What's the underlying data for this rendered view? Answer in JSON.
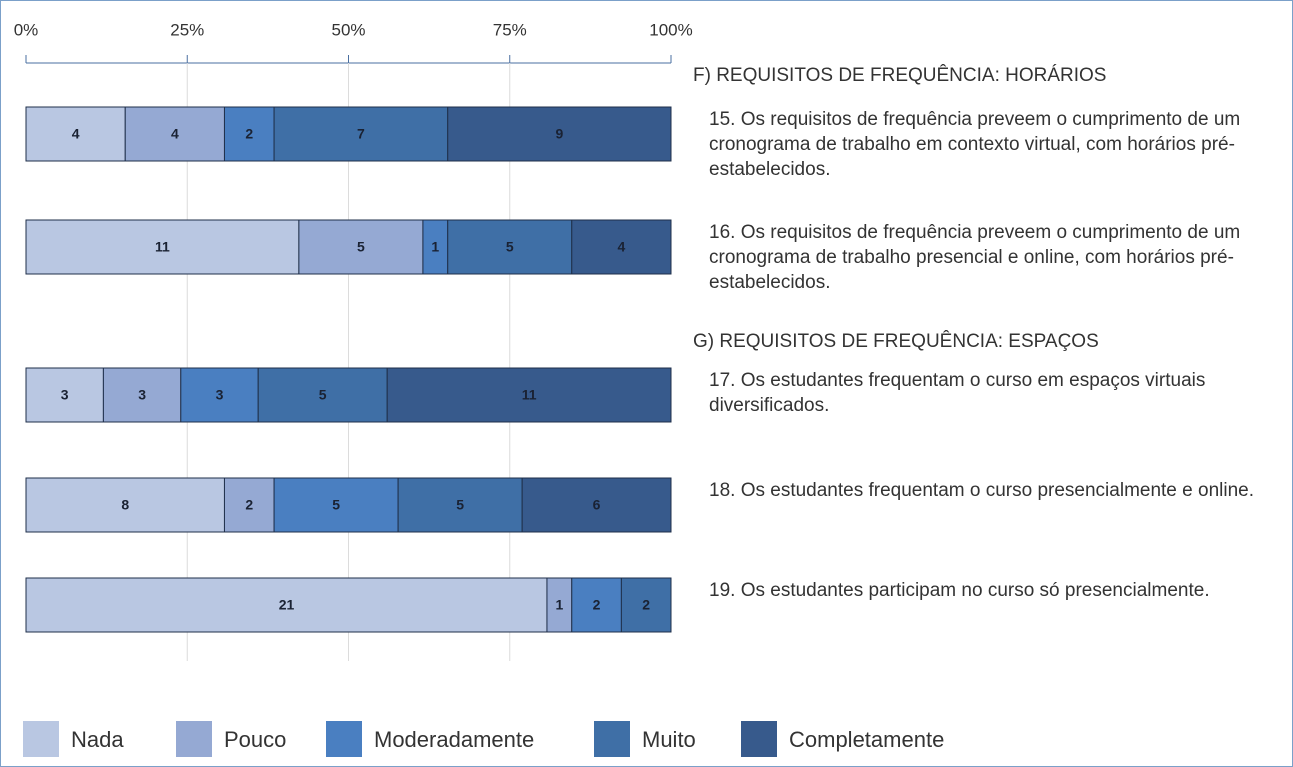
{
  "chart_data": {
    "type": "stacked-bar-100",
    "orientation": "horizontal",
    "section_titles": [
      "F) REQUISITOS DE FREQUÊNCIA: HORÁRIOS",
      "G) REQUISITOS DE FREQUÊNCIA: ESPAÇOS"
    ],
    "categories": [
      "15. Os requisitos de frequência preveem o cumprimento de um cronograma de trabalho em contexto virtual, com horários pré-estabelecidos.",
      "16. Os requisitos de frequência preveem o cumprimento de um cronograma de trabalho presencial e online, com horários pré-estabelecidos.",
      "17.  Os estudantes frequentam o curso em espaços virtuais diversificados.",
      "18. Os estudantes frequentam o curso presencialmente e online.",
      "19. Os estudantes participam no curso só presencialmente."
    ],
    "series": [
      {
        "name": "Nada",
        "color": "#b9c7e2",
        "values": [
          4,
          11,
          3,
          8,
          21
        ]
      },
      {
        "name": "Pouco",
        "color": "#95a9d3",
        "values": [
          4,
          5,
          3,
          2,
          1
        ]
      },
      {
        "name": "Moderadamente",
        "color": "#4a7fc1",
        "values": [
          2,
          1,
          3,
          5,
          2
        ]
      },
      {
        "name": "Muito",
        "color": "#3f6fa6",
        "values": [
          7,
          5,
          5,
          5,
          2
        ]
      },
      {
        "name": "Completamente",
        "color": "#375a8c",
        "values": [
          9,
          4,
          11,
          6,
          0
        ]
      }
    ],
    "xlim": [
      0,
      100
    ],
    "xticks": [
      {
        "value": 0,
        "label": "0%"
      },
      {
        "value": 25,
        "label": "25%"
      },
      {
        "value": 50,
        "label": "50%"
      },
      {
        "value": 75,
        "label": "75%"
      },
      {
        "value": 100,
        "label": "100%"
      }
    ],
    "grid": true,
    "legend": "bottom"
  }
}
